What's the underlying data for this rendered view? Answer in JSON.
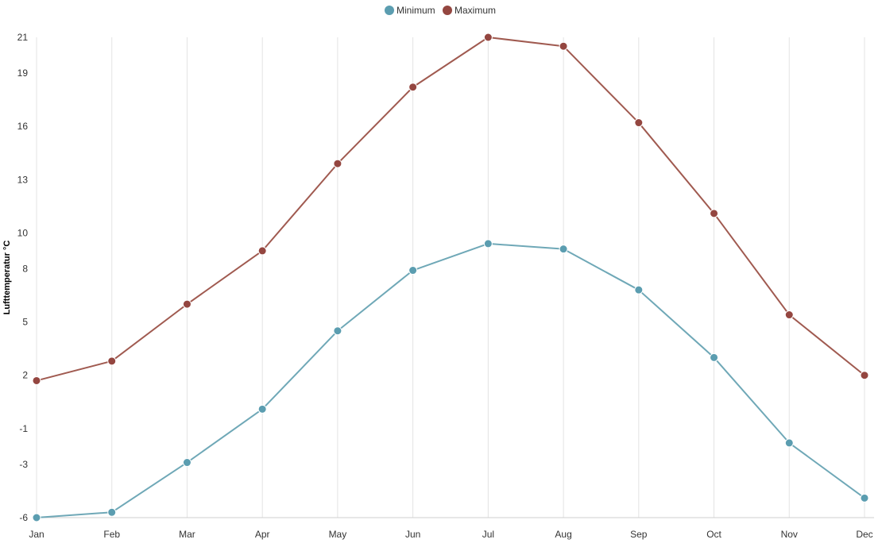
{
  "chart_data": {
    "type": "line",
    "title": "",
    "xlabel": "",
    "ylabel": "Lufttemperatur °C",
    "categories": [
      "Jan",
      "Feb",
      "Mar",
      "Apr",
      "May",
      "Jun",
      "Jul",
      "Aug",
      "Sep",
      "Oct",
      "Nov",
      "Dec"
    ],
    "y_ticks": [
      "-6",
      "-3",
      "-1",
      "2",
      "5",
      "8",
      "10",
      "13",
      "16",
      "19",
      "21"
    ],
    "ylim": [
      -6,
      21
    ],
    "grid": {
      "vertical": true,
      "horizontal": false
    },
    "legend_position": "top-center",
    "series": [
      {
        "name": "Minimum",
        "color": "#6fa8b7",
        "marker_color": "#5b9db0",
        "values": [
          -6.0,
          -5.7,
          -2.9,
          0.1,
          4.5,
          7.9,
          9.4,
          9.1,
          6.8,
          3.0,
          -1.8,
          -4.9
        ]
      },
      {
        "name": "Maximum",
        "color": "#a05a50",
        "marker_color": "#944640",
        "values": [
          1.7,
          2.8,
          6.0,
          9.0,
          13.9,
          18.2,
          21.0,
          20.5,
          16.2,
          11.1,
          5.4,
          2.0
        ]
      }
    ]
  }
}
